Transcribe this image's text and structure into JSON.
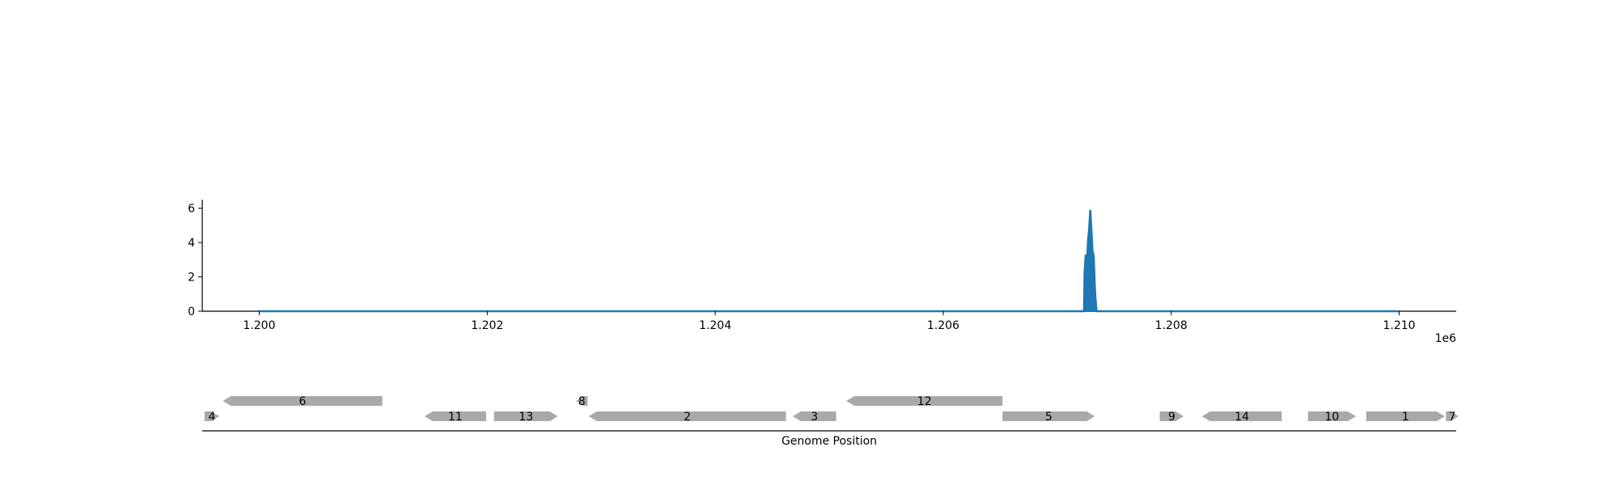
{
  "chart_data": [
    {
      "type": "area",
      "title": "",
      "xlabel": "",
      "ylabel": "",
      "x_offset_label": "1e6",
      "xlim": [
        1199500,
        1210500
      ],
      "ylim": [
        0,
        6.5
      ],
      "x_ticks": [
        1200000,
        1202000,
        1204000,
        1206000,
        1208000,
        1210000
      ],
      "x_tick_labels": [
        "1.200",
        "1.202",
        "1.204",
        "1.206",
        "1.208",
        "1.210"
      ],
      "y_ticks": [
        0,
        2,
        4,
        6
      ],
      "y_tick_labels": [
        "0",
        "2",
        "4",
        "6"
      ],
      "grid": false,
      "series": [
        {
          "color": "#1f77b4",
          "x": [
            1200000,
            1207235,
            1207240,
            1207250,
            1207260,
            1207270,
            1207280,
            1207290,
            1207300,
            1207310,
            1207320,
            1207330,
            1207335,
            1207345,
            1210000
          ],
          "y": [
            0,
            0,
            2.3,
            3.3,
            2.7,
            4.1,
            4.8,
            5.9,
            4.7,
            3.5,
            3.2,
            1.4,
            0.8,
            0,
            0
          ]
        }
      ]
    },
    {
      "type": "gene-map",
      "xlabel": "Genome Position",
      "xlim": [
        1199500,
        1210500
      ],
      "feature_color": "#a9a9a9",
      "genes": [
        {
          "label": "4",
          "start": 1199520,
          "end": 1199650,
          "strand": 1,
          "row": 0
        },
        {
          "label": "6",
          "start": 1199680,
          "end": 1201080,
          "strand": -1,
          "row": 1
        },
        {
          "label": "11",
          "start": 1201450,
          "end": 1201990,
          "strand": -1,
          "row": 0
        },
        {
          "label": "13",
          "start": 1202060,
          "end": 1202620,
          "strand": 1,
          "row": 0
        },
        {
          "label": "8",
          "start": 1202780,
          "end": 1202880,
          "strand": -1,
          "row": 1
        },
        {
          "label": "2",
          "start": 1202890,
          "end": 1204620,
          "strand": -1,
          "row": 0
        },
        {
          "label": "3",
          "start": 1204680,
          "end": 1205060,
          "strand": -1,
          "row": 0
        },
        {
          "label": "12",
          "start": 1205150,
          "end": 1206520,
          "strand": -1,
          "row": 1
        },
        {
          "label": "5",
          "start": 1206520,
          "end": 1207330,
          "strand": 1,
          "row": 0
        },
        {
          "label": "9",
          "start": 1207900,
          "end": 1208110,
          "strand": 1,
          "row": 0
        },
        {
          "label": "14",
          "start": 1208270,
          "end": 1208970,
          "strand": -1,
          "row": 0
        },
        {
          "label": "10",
          "start": 1209200,
          "end": 1209620,
          "strand": 1,
          "row": 0
        },
        {
          "label": "1",
          "start": 1209710,
          "end": 1210400,
          "strand": 1,
          "row": 0
        },
        {
          "label": "7",
          "start": 1210410,
          "end": 1210520,
          "strand": 1,
          "row": 0
        }
      ]
    }
  ]
}
